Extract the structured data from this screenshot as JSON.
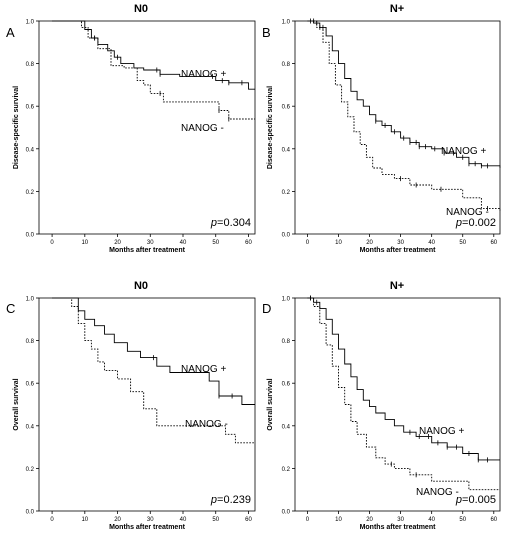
{
  "figure": {
    "panels": [
      {
        "letter": "A",
        "title": "N0"
      },
      {
        "letter": "B",
        "title": "N+"
      },
      {
        "letter": "C",
        "title": "N0"
      },
      {
        "letter": "D",
        "title": "N+"
      }
    ]
  },
  "chart_data": [
    {
      "type": "line",
      "panel": "A",
      "title": "N0",
      "xlabel": "Months after treatment",
      "ylabel": "Disease-specific survival",
      "xlim": [
        -4,
        62
      ],
      "ylim": [
        0,
        1.0
      ],
      "xticks": [
        0,
        10,
        20,
        30,
        40,
        50,
        60
      ],
      "yticks": [
        0.0,
        0.2,
        0.4,
        0.6,
        0.8,
        1.0
      ],
      "annotation": "p=0.304",
      "series": [
        {
          "name": "NANOG +",
          "style": "solid",
          "x": [
            0,
            9,
            10,
            12,
            14,
            17,
            19,
            21,
            25,
            28,
            31,
            33,
            39,
            44,
            50,
            54,
            58,
            60,
            62
          ],
          "y": [
            1.0,
            1.0,
            0.96,
            0.92,
            0.89,
            0.86,
            0.83,
            0.8,
            0.78,
            0.77,
            0.77,
            0.75,
            0.74,
            0.74,
            0.72,
            0.71,
            0.71,
            0.68,
            0.68
          ],
          "censor_x": [
            13,
            20,
            32,
            33,
            49,
            52,
            54,
            58
          ]
        },
        {
          "name": "NANOG -",
          "style": "dotted",
          "x": [
            0,
            6,
            9,
            11,
            14,
            18,
            22,
            26,
            28,
            30,
            34,
            51,
            54,
            62
          ],
          "y": [
            1.0,
            1.0,
            0.97,
            0.92,
            0.87,
            0.79,
            0.78,
            0.72,
            0.7,
            0.66,
            0.62,
            0.58,
            0.54,
            0.54
          ],
          "censor_x": [
            13,
            33,
            51,
            54
          ]
        }
      ]
    },
    {
      "type": "line",
      "panel": "B",
      "title": "N+",
      "xlabel": "Months after treatment",
      "ylabel": "Disease-specific survival",
      "xlim": [
        -4,
        62
      ],
      "ylim": [
        0,
        1.0
      ],
      "xticks": [
        0,
        10,
        20,
        30,
        40,
        50,
        60
      ],
      "yticks": [
        0.0,
        0.2,
        0.4,
        0.6,
        0.8,
        1.0
      ],
      "annotation": "p=0.002",
      "series": [
        {
          "name": "NANOG +",
          "style": "solid",
          "x": [
            0,
            2,
            4,
            6,
            8,
            10,
            12,
            14,
            16,
            18,
            20,
            22,
            24,
            27,
            30,
            33,
            36,
            40,
            44,
            48,
            52,
            56,
            62
          ],
          "y": [
            1.0,
            0.99,
            0.97,
            0.93,
            0.86,
            0.8,
            0.73,
            0.67,
            0.63,
            0.6,
            0.56,
            0.53,
            0.51,
            0.48,
            0.45,
            0.43,
            0.41,
            0.4,
            0.38,
            0.36,
            0.33,
            0.32,
            0.31
          ],
          "censor_x": [
            1,
            3,
            5,
            22,
            25,
            28,
            31,
            33,
            35,
            36,
            38,
            41,
            44,
            47,
            50,
            52,
            54,
            56,
            58
          ]
        },
        {
          "name": "NANOG -",
          "style": "dotted",
          "x": [
            0,
            3,
            5,
            7,
            9,
            11,
            13,
            15,
            17,
            19,
            21,
            24,
            28,
            33,
            40,
            50,
            56,
            62
          ],
          "y": [
            1.0,
            0.97,
            0.9,
            0.8,
            0.7,
            0.62,
            0.55,
            0.48,
            0.42,
            0.36,
            0.31,
            0.28,
            0.26,
            0.23,
            0.21,
            0.17,
            0.12,
            0.11
          ],
          "censor_x": [
            2,
            4,
            30,
            35,
            43,
            58
          ]
        }
      ]
    },
    {
      "type": "line",
      "panel": "C",
      "title": "N0",
      "xlabel": "Months after treatment",
      "ylabel": "Overall survival",
      "xlim": [
        -4,
        62
      ],
      "ylim": [
        0,
        1.0
      ],
      "xticks": [
        0,
        10,
        20,
        30,
        40,
        50,
        60
      ],
      "yticks": [
        0.0,
        0.2,
        0.4,
        0.6,
        0.8,
        1.0
      ],
      "annotation": "p=0.239",
      "series": [
        {
          "name": "NANOG +",
          "style": "solid",
          "x": [
            0,
            6,
            8,
            10,
            13,
            16,
            19,
            23,
            27,
            32,
            36,
            46,
            48,
            51,
            58,
            62
          ],
          "y": [
            1.0,
            1.0,
            0.94,
            0.9,
            0.87,
            0.83,
            0.79,
            0.75,
            0.72,
            0.68,
            0.65,
            0.65,
            0.61,
            0.54,
            0.5,
            0.5
          ],
          "censor_x": [
            31,
            51,
            55
          ]
        },
        {
          "name": "NANOG -",
          "style": "dotted",
          "x": [
            0,
            6,
            8,
            10,
            12,
            14,
            16,
            20,
            24,
            28,
            32,
            53,
            56,
            62
          ],
          "y": [
            1.0,
            0.96,
            0.88,
            0.8,
            0.76,
            0.7,
            0.66,
            0.62,
            0.56,
            0.48,
            0.4,
            0.36,
            0.32,
            0.32
          ],
          "censor_x": []
        }
      ]
    },
    {
      "type": "line",
      "panel": "D",
      "title": "N+",
      "xlabel": "Months after treatment",
      "ylabel": "Overall survival",
      "xlim": [
        -4,
        62
      ],
      "ylim": [
        0,
        1.0
      ],
      "xticks": [
        0,
        10,
        20,
        30,
        40,
        50,
        60
      ],
      "yticks": [
        0.0,
        0.2,
        0.4,
        0.6,
        0.8,
        1.0
      ],
      "annotation": "p=0.005",
      "series": [
        {
          "name": "NANOG +",
          "style": "solid",
          "x": [
            0,
            2,
            4,
            6,
            8,
            10,
            12,
            14,
            16,
            18,
            20,
            22,
            25,
            28,
            31,
            35,
            40,
            45,
            50,
            55,
            62
          ],
          "y": [
            1.0,
            0.98,
            0.95,
            0.9,
            0.83,
            0.76,
            0.69,
            0.63,
            0.57,
            0.52,
            0.49,
            0.46,
            0.43,
            0.4,
            0.37,
            0.35,
            0.32,
            0.3,
            0.27,
            0.24,
            0.24
          ],
          "censor_x": [
            1,
            3,
            33,
            36,
            39,
            42,
            45,
            48,
            52,
            55,
            58
          ]
        },
        {
          "name": "NANOG -",
          "style": "dotted",
          "x": [
            0,
            2,
            4,
            6,
            8,
            10,
            12,
            14,
            16,
            19,
            22,
            25,
            28,
            33,
            40,
            52,
            62
          ],
          "y": [
            1.0,
            0.96,
            0.88,
            0.78,
            0.68,
            0.58,
            0.5,
            0.42,
            0.36,
            0.3,
            0.25,
            0.22,
            0.2,
            0.17,
            0.14,
            0.1,
            0.1
          ],
          "censor_x": [
            1,
            27,
            35
          ]
        }
      ]
    }
  ]
}
